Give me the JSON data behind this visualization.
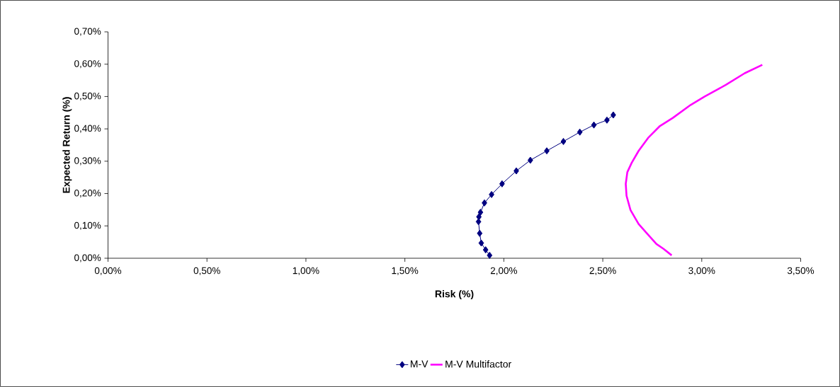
{
  "chart_data": {
    "type": "line",
    "xlabel": "Risk (%)",
    "ylabel": "Expected Return (%)",
    "xlim": [
      0,
      3.5
    ],
    "ylim": [
      0,
      0.7
    ],
    "xticks": [
      {
        "value": 0,
        "label": "0,00%"
      },
      {
        "value": 0.5,
        "label": "0,50%"
      },
      {
        "value": 1,
        "label": "1,00%"
      },
      {
        "value": 1.5,
        "label": "1,50%"
      },
      {
        "value": 2,
        "label": "2,00%"
      },
      {
        "value": 2.5,
        "label": "2,50%"
      },
      {
        "value": 3,
        "label": "3,00%"
      },
      {
        "value": 3.5,
        "label": "3,50%"
      }
    ],
    "yticks": [
      {
        "value": 0,
        "label": "0,00%"
      },
      {
        "value": 0.1,
        "label": "0,10%"
      },
      {
        "value": 0.2,
        "label": "0,20%"
      },
      {
        "value": 0.3,
        "label": "0,30%"
      },
      {
        "value": 0.4,
        "label": "0,40%"
      },
      {
        "value": 0.5,
        "label": "0,50%"
      },
      {
        "value": 0.6,
        "label": "0,60%"
      },
      {
        "value": 0.7,
        "label": "0,70%"
      }
    ],
    "grid": false,
    "legend": "bottom",
    "line_style": "solid",
    "series": [
      {
        "name": "M-V",
        "color": "#000080",
        "marker": "diamond",
        "x": [
          1.928,
          1.908,
          1.886,
          1.878,
          1.872,
          1.874,
          1.882,
          1.902,
          1.938,
          1.991,
          2.063,
          2.134,
          2.217,
          2.301,
          2.384,
          2.455,
          2.521,
          2.553
        ],
        "values": [
          0.009,
          0.026,
          0.047,
          0.077,
          0.113,
          0.128,
          0.142,
          0.171,
          0.197,
          0.23,
          0.27,
          0.303,
          0.332,
          0.361,
          0.39,
          0.412,
          0.427,
          0.443
        ]
      },
      {
        "name": "M-V Multifactor",
        "color": "#ff00ff",
        "marker": "none",
        "x": [
          2.848,
          2.807,
          2.771,
          2.723,
          2.681,
          2.64,
          2.62,
          2.616,
          2.624,
          2.646,
          2.681,
          2.729,
          2.789,
          2.854,
          2.944,
          3.015,
          3.122,
          3.217,
          3.306
        ],
        "values": [
          0.009,
          0.029,
          0.044,
          0.077,
          0.106,
          0.149,
          0.193,
          0.23,
          0.266,
          0.295,
          0.332,
          0.372,
          0.409,
          0.434,
          0.474,
          0.5,
          0.536,
          0.572,
          0.598
        ]
      }
    ]
  }
}
